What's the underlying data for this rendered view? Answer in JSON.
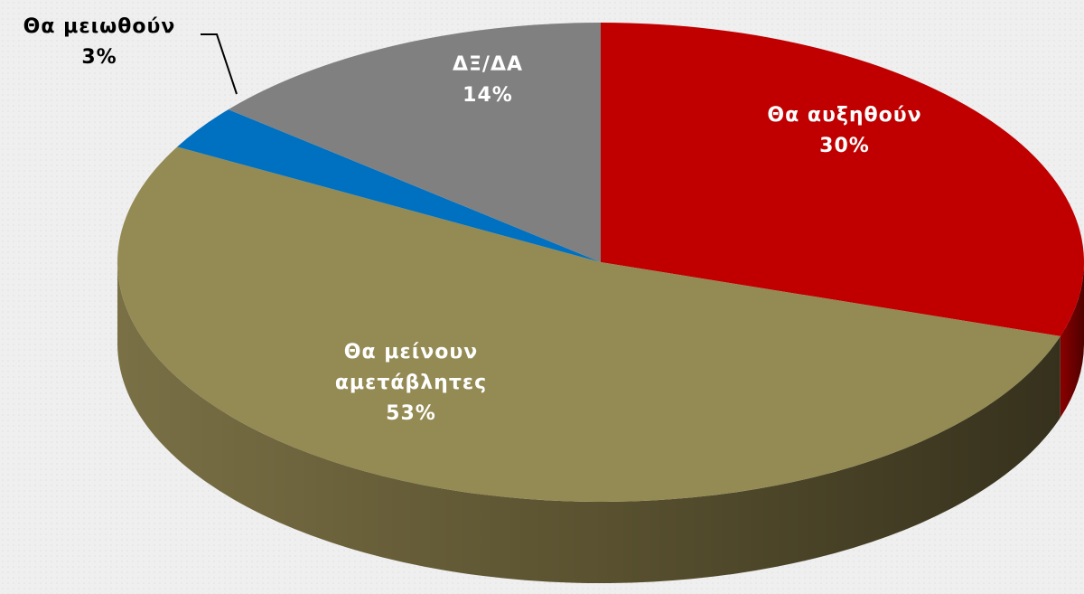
{
  "chart_data": {
    "type": "pie",
    "categories": [
      "Θα αυξηθούν",
      "Θα μείνουν αμετάβλητες",
      "Θα μειωθούν",
      "ΔΞ/ΔΑ"
    ],
    "values": [
      30,
      53,
      3,
      14
    ],
    "value_labels": [
      "30%",
      "53%",
      "3%",
      "14%"
    ],
    "colors": [
      "#c00000",
      "#948a54",
      "#0070c0",
      "#808080"
    ]
  }
}
